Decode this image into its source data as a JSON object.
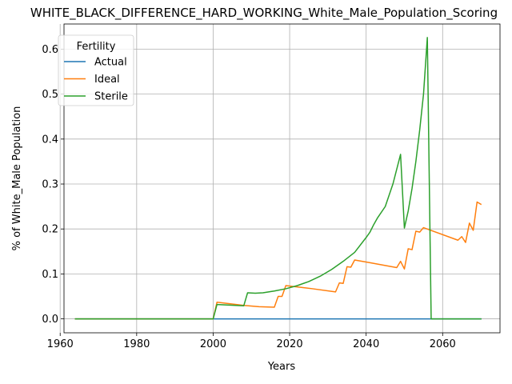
{
  "chart_data": {
    "type": "line",
    "title": "WHITE_BLACK_DIFFERENCE_HARD_WORKING_White_Male_Population_Scoring",
    "xlabel": "Years",
    "ylabel": "% of White_Male Population",
    "xlim": [
      1961,
      2075
    ],
    "ylim": [
      -0.031,
      0.656
    ],
    "xticks": [
      1960,
      1980,
      2000,
      2020,
      2040,
      2060
    ],
    "yticks": [
      0.0,
      0.1,
      0.2,
      0.3,
      0.4,
      0.5,
      0.6
    ],
    "xtick_labels": [
      "1960",
      "1980",
      "2000",
      "2020",
      "2040",
      "2060"
    ],
    "ytick_labels": [
      "0.0",
      "0.1",
      "0.2",
      "0.3",
      "0.4",
      "0.5",
      "0.6"
    ],
    "grid": true,
    "legend_title": "Fertility",
    "legend_position": "upper left",
    "series": [
      {
        "name": "Actual",
        "color": "#1f77b4",
        "x": [
          1964,
          2070
        ],
        "y": [
          0.0,
          0.0
        ]
      },
      {
        "name": "Ideal",
        "color": "#ff7f0e",
        "x": [
          1964,
          2000,
          2001,
          2008,
          2012,
          2016,
          2017,
          2018,
          2019,
          2021,
          2026,
          2032,
          2033,
          2034,
          2035,
          2036,
          2037,
          2041,
          2048,
          2049,
          2050,
          2051,
          2052,
          2053,
          2054,
          2055,
          2064,
          2065,
          2066,
          2067,
          2068,
          2069,
          2070
        ],
        "y": [
          0.0,
          0.0,
          0.037,
          0.03,
          0.027,
          0.026,
          0.05,
          0.05,
          0.074,
          0.072,
          0.067,
          0.06,
          0.08,
          0.079,
          0.116,
          0.115,
          0.131,
          0.125,
          0.114,
          0.128,
          0.111,
          0.156,
          0.154,
          0.195,
          0.193,
          0.203,
          0.175,
          0.183,
          0.17,
          0.213,
          0.197,
          0.26,
          0.255
        ]
      },
      {
        "name": "Sterile",
        "color": "#2ca02c",
        "x": [
          1964,
          2000,
          2001,
          2008,
          2009,
          2011,
          2013,
          2016,
          2019,
          2022,
          2025,
          2028,
          2031,
          2034,
          2037,
          2040,
          2041,
          2042,
          2043,
          2045,
          2047,
          2049,
          2050,
          2051,
          2052,
          2053,
          2054,
          2055,
          2056,
          2057,
          2058,
          2070
        ],
        "y": [
          0.0,
          0.0,
          0.032,
          0.029,
          0.058,
          0.057,
          0.058,
          0.062,
          0.067,
          0.074,
          0.083,
          0.095,
          0.11,
          0.128,
          0.148,
          0.181,
          0.193,
          0.21,
          0.225,
          0.25,
          0.3,
          0.366,
          0.202,
          0.24,
          0.29,
          0.35,
          0.42,
          0.5,
          0.626,
          0.0,
          0.0,
          0.0
        ]
      }
    ]
  }
}
